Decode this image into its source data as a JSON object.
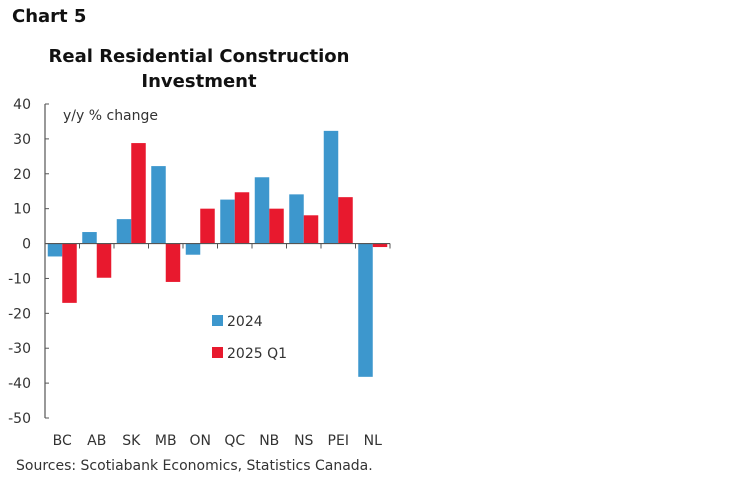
{
  "header": {
    "chart_number": "Chart 5"
  },
  "chart_data": {
    "type": "bar",
    "title": "Real Residential Construction Investment",
    "title_lines": [
      "Real Residential Construction",
      "Investment"
    ],
    "ylabel": "y/y % change",
    "xlabel": "",
    "ylim": [
      -50,
      40
    ],
    "yticks": [
      40,
      30,
      20,
      10,
      0,
      -10,
      -20,
      -30,
      -40,
      -50
    ],
    "grid": false,
    "legend_position": "center",
    "categories": [
      "BC",
      "AB",
      "SK",
      "MB",
      "ON",
      "QC",
      "NB",
      "NS",
      "PEI",
      "NL"
    ],
    "series": [
      {
        "name": "2024",
        "color": "#3d97cd",
        "values": [
          -3.7,
          3.3,
          7.0,
          22.2,
          -3.2,
          12.6,
          19.0,
          14.1,
          32.3,
          -38.2
        ]
      },
      {
        "name": "2025 Q1",
        "color": "#e8192e",
        "values": [
          -17.0,
          -9.8,
          28.8,
          -11.0,
          10.0,
          14.7,
          10.0,
          8.1,
          13.3,
          -1.0
        ]
      }
    ]
  },
  "footer": {
    "source": "Sources: Scotiabank Economics, Statistics Canada."
  }
}
